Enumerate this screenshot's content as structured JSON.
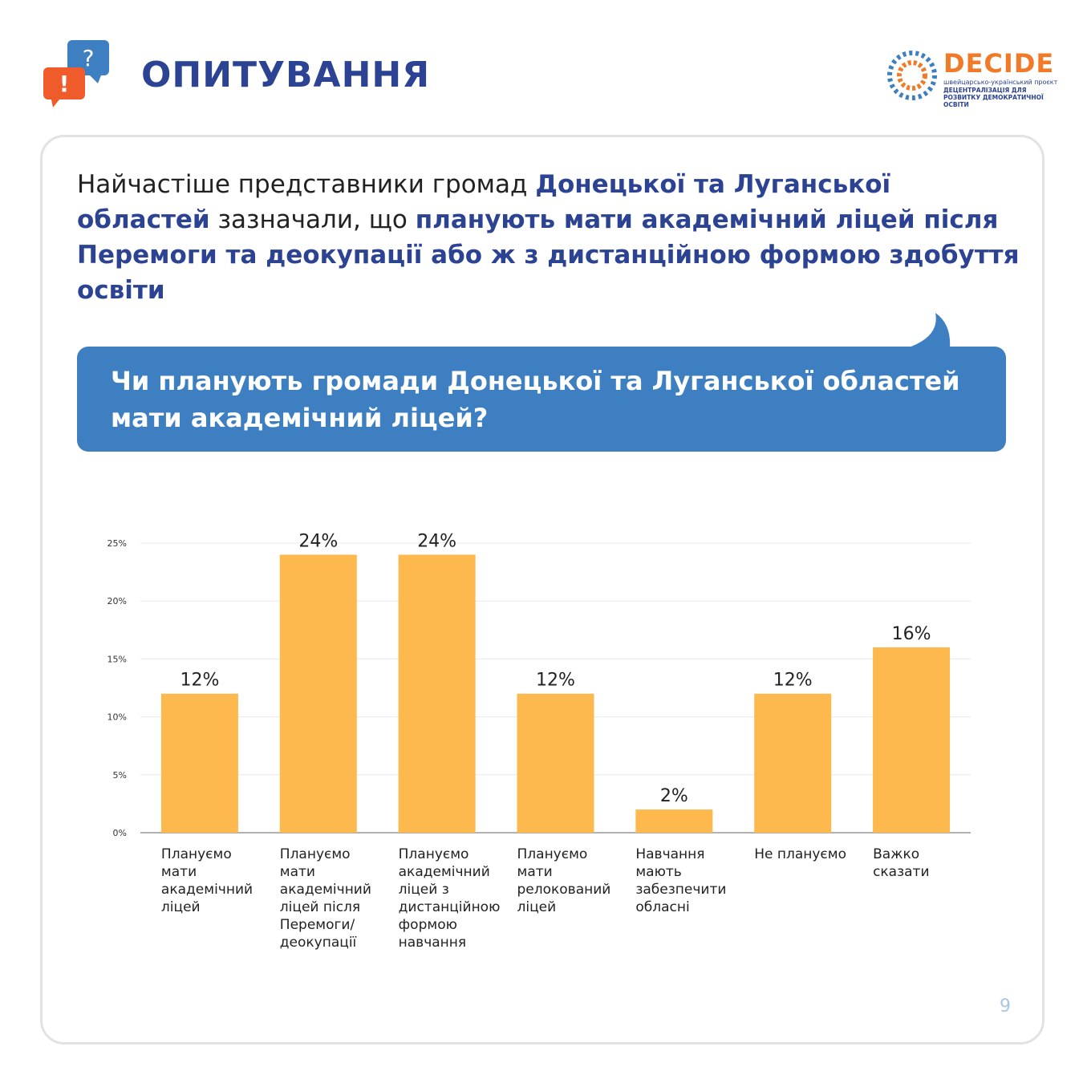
{
  "header": {
    "title": "ОПИТУВАННЯ",
    "icon_question": "?",
    "icon_exclamation": "!"
  },
  "logo": {
    "name": "DECIDE",
    "subtitle": "швейцарсько-український проєкт",
    "description": "ДЕЦЕНТРАЛІЗАЦІЯ ДЛЯ РОЗВИТКУ ДЕМОКРАТИЧНОЇ ОСВІТИ"
  },
  "intro": [
    "Найчастіше представники громад ",
    "Донецької та Луганської областей",
    " зазначали, що ",
    "планують мати академічний ліцей після Перемоги та деокупації або ж з дистанційною формою здобуття освіти"
  ],
  "question": "Чи планують громади Донецької та Луганської областей мати академічний ліцей?",
  "chart_data": {
    "type": "bar",
    "color": "#fdb84e",
    "categories": [
      "Плануємо мати академічний ліцей",
      "Плануємо мати академічний ліцей після Перемоги/ деокупації",
      "Плануємо академічний ліцей з дистанційною формою навчання",
      "Плануємо мати релокований ліцей",
      "Навчання мають забезпечити обласні",
      "Не плануємо",
      "Важко сказати"
    ],
    "values": [
      12,
      24,
      24,
      12,
      2,
      12,
      16
    ],
    "value_labels": [
      "12%",
      "24%",
      "24%",
      "12%",
      "2%",
      "12%",
      "16%"
    ],
    "ylim": [
      0,
      25
    ],
    "yticks": [
      {
        "value": 0,
        "label": "0%"
      },
      {
        "value": 5,
        "label": "5%"
      },
      {
        "value": 10,
        "label": "10%"
      },
      {
        "value": 15,
        "label": "15%"
      },
      {
        "value": 20,
        "label": "20%"
      },
      {
        "value": 25,
        "label": "25%"
      }
    ],
    "grid": true
  },
  "page_number": "9"
}
